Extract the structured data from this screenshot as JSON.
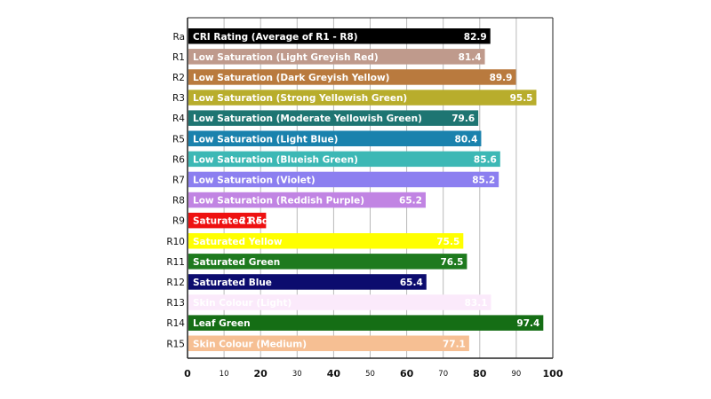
{
  "chart_data": {
    "type": "bar",
    "orientation": "horizontal",
    "title": "",
    "xlabel": "",
    "ylabel": "",
    "xlim": [
      0,
      100
    ],
    "grid": true,
    "x_ticks": [
      {
        "value": 0,
        "label": "0",
        "major": true
      },
      {
        "value": 10,
        "label": "10",
        "major": false
      },
      {
        "value": 20,
        "label": "20",
        "major": true
      },
      {
        "value": 30,
        "label": "30",
        "major": false
      },
      {
        "value": 40,
        "label": "40",
        "major": true
      },
      {
        "value": 50,
        "label": "50",
        "major": false
      },
      {
        "value": 60,
        "label": "60",
        "major": true
      },
      {
        "value": 70,
        "label": "70",
        "major": false
      },
      {
        "value": 80,
        "label": "80",
        "major": true
      },
      {
        "value": 90,
        "label": "90",
        "major": false
      },
      {
        "value": 100,
        "label": "100",
        "major": true
      }
    ],
    "bars": [
      {
        "category": "Ra",
        "label": "CRI Rating (Average of R1 - R8)",
        "value": 82.9,
        "value_label": "82.9",
        "color": "#000000",
        "text_color": "#ffffff"
      },
      {
        "category": "R1",
        "label": "Low Saturation (Light Greyish Red)",
        "value": 81.4,
        "value_label": "81.4",
        "color": "#bf9a8c",
        "text_color": "#ffffff"
      },
      {
        "category": "R2",
        "label": "Low Saturation (Dark Greyish Yellow)",
        "value": 89.9,
        "value_label": "89.9",
        "color": "#b97a3e",
        "text_color": "#ffffff"
      },
      {
        "category": "R3",
        "label": "Low Saturation (Strong Yellowish Green)",
        "value": 95.5,
        "value_label": "95.5",
        "color": "#b8ad2c",
        "text_color": "#ffffff"
      },
      {
        "category": "R4",
        "label": "Low Saturation (Moderate Yellowish Green)",
        "value": 79.6,
        "value_label": "79.6",
        "color": "#1e7572",
        "text_color": "#ffffff"
      },
      {
        "category": "R5",
        "label": "Low Saturation (Light Blue)",
        "value": 80.4,
        "value_label": "80.4",
        "color": "#1a82ad",
        "text_color": "#ffffff"
      },
      {
        "category": "R6",
        "label": "Low Saturation (Blueish Green)",
        "value": 85.6,
        "value_label": "85.6",
        "color": "#3cb8b5",
        "text_color": "#ffffff"
      },
      {
        "category": "R7",
        "label": "Low Saturation (Violet)",
        "value": 85.2,
        "value_label": "85.2",
        "color": "#8c7ff0",
        "text_color": "#ffffff"
      },
      {
        "category": "R8",
        "label": "Low Saturation (Reddish Purple)",
        "value": 65.2,
        "value_label": "65.2",
        "color": "#c184e3",
        "text_color": "#ffffff"
      },
      {
        "category": "R9",
        "label": "Saturated Red",
        "value": 21.5,
        "value_label": "21.5",
        "color": "#ee1111",
        "text_color": "#ffffff"
      },
      {
        "category": "R10",
        "label": "Saturated Yellow",
        "value": 75.5,
        "value_label": "75.5",
        "color": "#ffff00",
        "text_color": "#ffffff"
      },
      {
        "category": "R11",
        "label": "Saturated Green",
        "value": 76.5,
        "value_label": "76.5",
        "color": "#1e7a1e",
        "text_color": "#ffffff"
      },
      {
        "category": "R12",
        "label": "Saturated Blue",
        "value": 65.4,
        "value_label": "65.4",
        "color": "#0c0c6e",
        "text_color": "#ffffff"
      },
      {
        "category": "R13",
        "label": "Skin Colour (Light)",
        "value": 83.1,
        "value_label": "83.1",
        "color": "#fbeafb",
        "text_color": "#ffffff"
      },
      {
        "category": "R14",
        "label": "Leaf Green",
        "value": 97.4,
        "value_label": "97.4",
        "color": "#156e15",
        "text_color": "#ffffff"
      },
      {
        "category": "R15",
        "label": "Skin Colour (Medium)",
        "value": 77.1,
        "value_label": "77.1",
        "color": "#f6bf93",
        "text_color": "#ffffff"
      }
    ]
  }
}
